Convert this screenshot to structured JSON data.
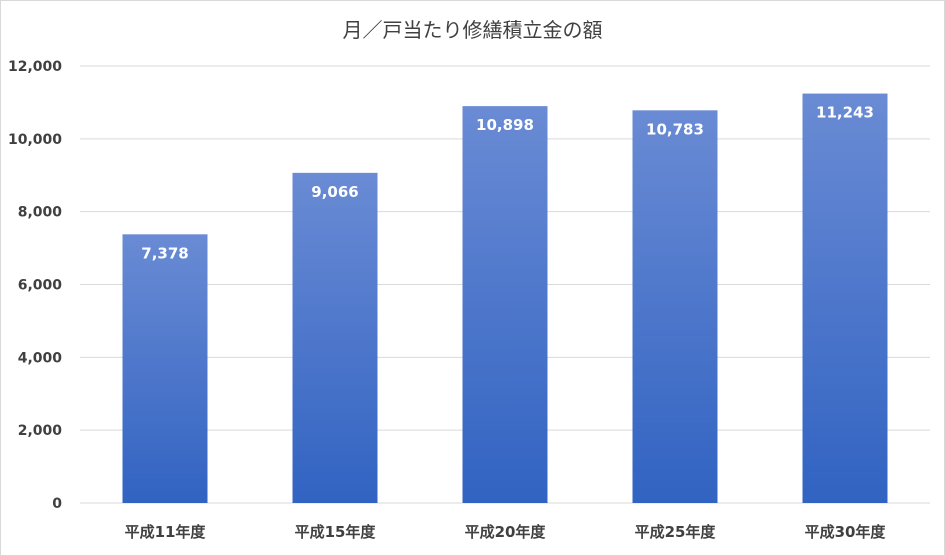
{
  "chart_data": {
    "type": "bar",
    "title": "月／戸当たり修繕積立金の額",
    "xlabel": "",
    "ylabel": "",
    "categories": [
      "平成11年度",
      "平成15年度",
      "平成20年度",
      "平成25年度",
      "平成30年度"
    ],
    "values": [
      7378,
      9066,
      10898,
      10783,
      11243
    ],
    "data_labels": [
      "7,378",
      "9,066",
      "10,898",
      "10,783",
      "11,243"
    ],
    "ylim": [
      0,
      12000
    ],
    "yticks": [
      0,
      2000,
      4000,
      6000,
      8000,
      10000,
      12000
    ],
    "ytick_labels": [
      "0",
      "2,000",
      "4,000",
      "6,000",
      "8,000",
      "10,000",
      "12,000"
    ],
    "grid": true,
    "legend": "none",
    "colors": {
      "bar_top": "#6a8bd4",
      "bar_bottom": "#3163c2",
      "grid": "#d9d9d9",
      "text": "#404040"
    }
  }
}
